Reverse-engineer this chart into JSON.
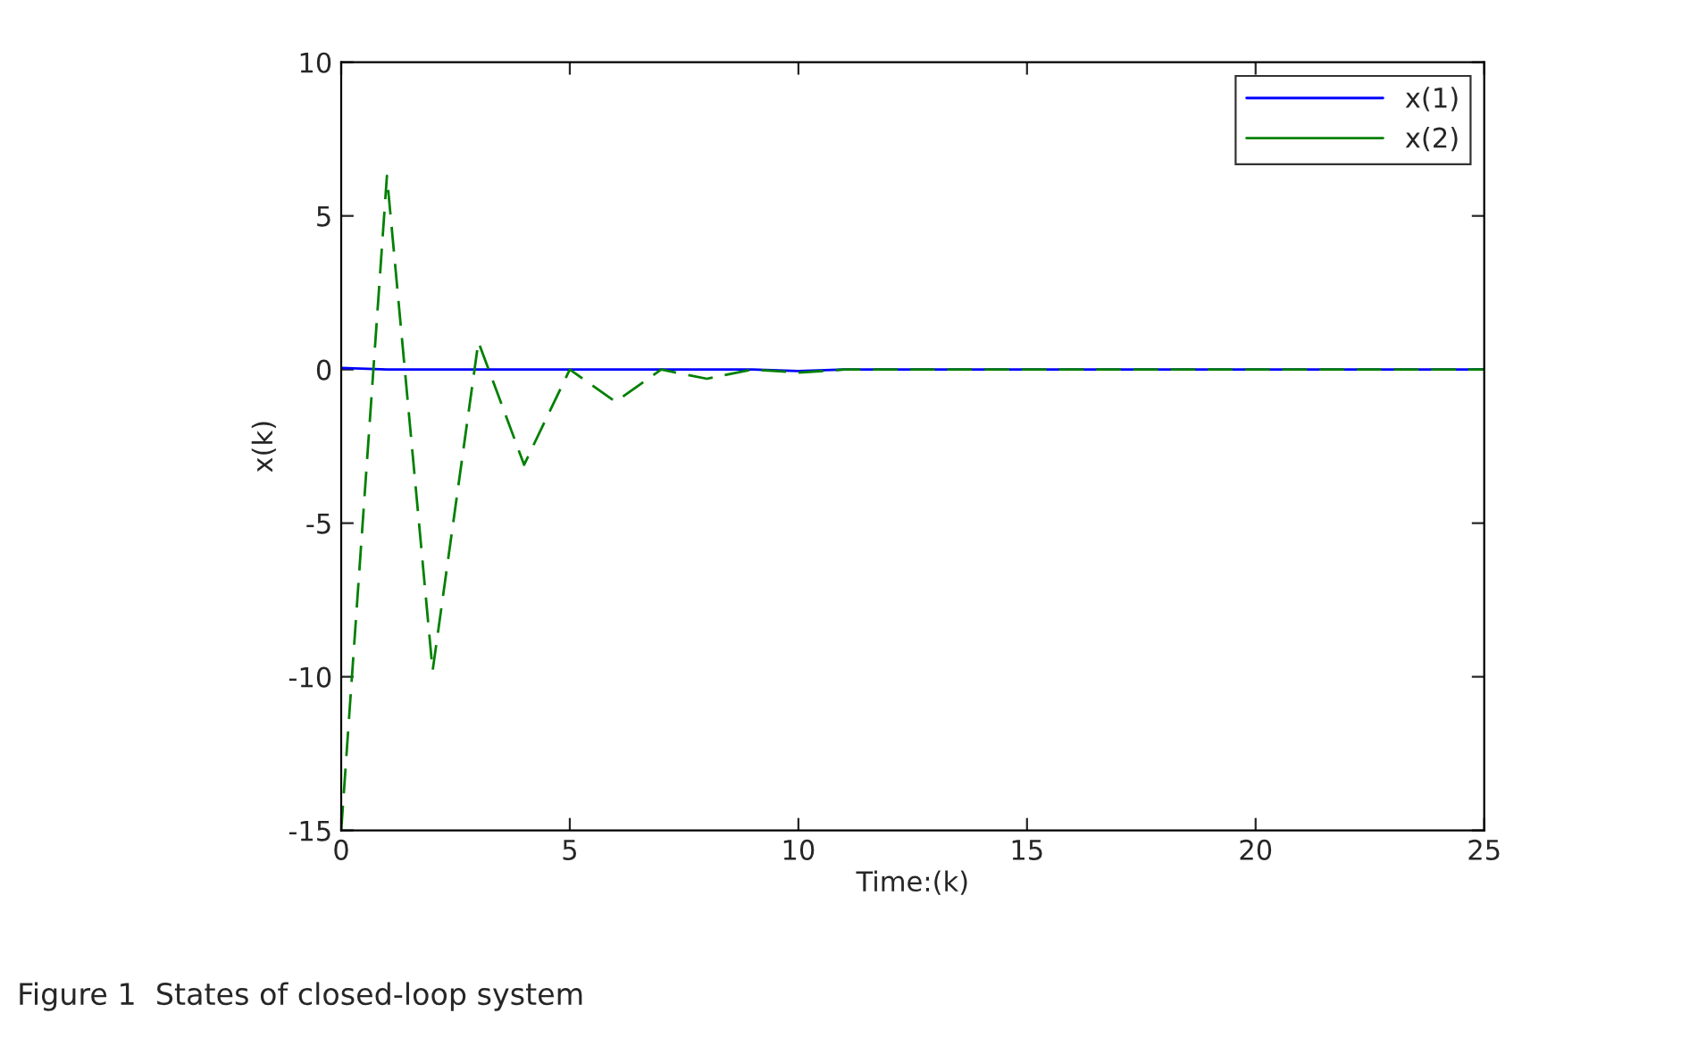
{
  "chart_data": {
    "type": "line",
    "xlabel": "Time:(k)",
    "ylabel": "x(k)",
    "xlim": [
      0,
      25
    ],
    "ylim": [
      -15,
      10
    ],
    "xticks": [
      0,
      5,
      10,
      15,
      20,
      25
    ],
    "yticks": [
      -15,
      -10,
      -5,
      0,
      5,
      10
    ],
    "grid": false,
    "legend": "top right",
    "marker": "none",
    "annotations": [
      "Figure 1  States of closed-loop system"
    ],
    "series": [
      {
        "name": "x(1)",
        "color": "#0000ff",
        "line_style": "solid",
        "x": [
          0,
          1,
          2,
          3,
          4,
          5,
          6,
          7,
          8,
          9,
          10,
          11,
          12,
          13,
          14,
          15,
          16,
          17,
          18,
          19,
          20,
          21,
          22,
          23,
          24,
          25
        ],
        "values": [
          0.05,
          0,
          0,
          0,
          0,
          0,
          0,
          0,
          0,
          0,
          -0.05,
          0,
          0,
          0,
          0,
          0,
          0,
          0,
          0,
          0,
          0,
          0,
          0,
          0,
          0,
          0
        ]
      },
      {
        "name": "x(2)",
        "color": "#008000",
        "line_style": "dashed",
        "x": [
          0,
          1,
          2,
          3,
          4,
          5,
          6,
          7,
          8,
          9,
          10,
          11,
          12,
          13,
          14,
          15,
          16,
          17,
          18,
          19,
          20,
          21,
          22,
          23,
          24,
          25
        ],
        "values": [
          -15,
          6.3,
          -9.8,
          0.9,
          -3.1,
          0,
          -1.05,
          0,
          -0.3,
          0,
          -0.1,
          0,
          0,
          0,
          0,
          0,
          0,
          0,
          0,
          0,
          0,
          0,
          0,
          0,
          0,
          0
        ]
      }
    ]
  }
}
